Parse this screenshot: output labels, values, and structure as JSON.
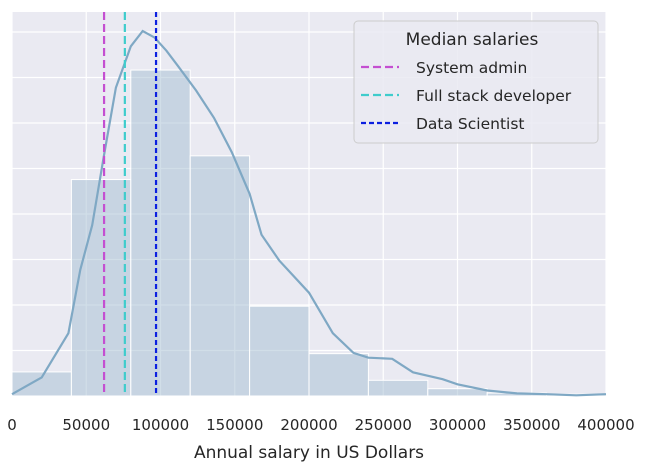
{
  "chart_data": {
    "type": "histogram",
    "xlabel": "Annual salary in US Dollars",
    "ylabel": "",
    "xlim": [
      0,
      400000
    ],
    "ylim": [
      0,
      1
    ],
    "grid": true,
    "legend_placement": "top-right",
    "x_ticks": [
      0,
      50000,
      100000,
      150000,
      200000,
      250000,
      300000,
      350000,
      400000
    ],
    "x_tick_labels": [
      "0",
      "50000",
      "100000",
      "150000",
      "200000",
      "250000",
      "300000",
      "350000",
      "400000"
    ],
    "histogram": {
      "color": "#a3bdd1",
      "bins": [
        {
          "start": 0,
          "end": 40000,
          "height": 0.066
        },
        {
          "start": 40000,
          "end": 80000,
          "height": 0.593
        },
        {
          "start": 80000,
          "end": 120000,
          "height": 0.893
        },
        {
          "start": 120000,
          "end": 160000,
          "height": 0.658
        },
        {
          "start": 160000,
          "end": 200000,
          "height": 0.246
        },
        {
          "start": 200000,
          "end": 240000,
          "height": 0.116
        },
        {
          "start": 240000,
          "end": 280000,
          "height": 0.043
        },
        {
          "start": 280000,
          "end": 320000,
          "height": 0.02
        },
        {
          "start": 320000,
          "end": 360000,
          "height": 0.008
        },
        {
          "start": 360000,
          "end": 400000,
          "height": 0.005
        }
      ]
    },
    "kde": {
      "color": "#7fa8c4",
      "x": [
        0,
        20000,
        38000,
        46000,
        54000,
        62000,
        70000,
        80000,
        88000,
        96000,
        104000,
        112000,
        124000,
        136000,
        148000,
        160000,
        168000,
        180000,
        200000,
        216000,
        230000,
        240000,
        256000,
        270000,
        290000,
        300000,
        320000,
        340000,
        360000,
        380000,
        400000
      ],
      "y": [
        0.005,
        0.051,
        0.172,
        0.346,
        0.468,
        0.661,
        0.845,
        0.958,
        1.0,
        0.982,
        0.946,
        0.903,
        0.837,
        0.762,
        0.668,
        0.554,
        0.442,
        0.371,
        0.283,
        0.172,
        0.118,
        0.105,
        0.102,
        0.065,
        0.046,
        0.032,
        0.015,
        0.007,
        0.005,
        0.002,
        0.005
      ]
    },
    "median_lines": [
      {
        "name": "System admin",
        "x": 62000,
        "color": "#c44fd1",
        "dash": "long"
      },
      {
        "name": "Full stack developer",
        "x": 76000,
        "color": "#3fcccc",
        "dash": "long"
      },
      {
        "name": "Data Scientist",
        "x": 97000,
        "color": "#0b1fe0",
        "dash": "short"
      }
    ],
    "legend_title": "Median salaries"
  }
}
